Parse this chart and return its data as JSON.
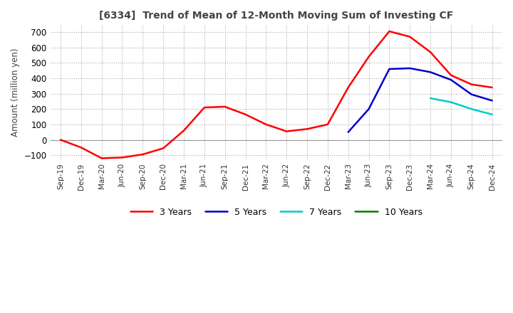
{
  "title": "[6334]  Trend of Mean of 12-Month Moving Sum of Investing CF",
  "ylabel": "Amount (million yen)",
  "ylim": [
    -130,
    750
  ],
  "yticks": [
    -100,
    0,
    100,
    200,
    300,
    400,
    500,
    600,
    700
  ],
  "x_labels": [
    "Sep-19",
    "Dec-19",
    "Mar-20",
    "Jun-20",
    "Sep-20",
    "Dec-20",
    "Mar-21",
    "Jun-21",
    "Sep-21",
    "Dec-21",
    "Mar-22",
    "Jun-22",
    "Sep-22",
    "Dec-22",
    "Mar-23",
    "Jun-23",
    "Sep-23",
    "Dec-23",
    "Mar-24",
    "Jun-24",
    "Sep-24",
    "Dec-24"
  ],
  "series": {
    "3 Years": {
      "color": "#FF0000",
      "data": [
        0,
        -50,
        -120,
        -115,
        -95,
        -55,
        60,
        210,
        215,
        165,
        100,
        55,
        70,
        100,
        340,
        540,
        705,
        670,
        570,
        420,
        360,
        340
      ]
    },
    "5 Years": {
      "color": "#0000CC",
      "data": [
        null,
        null,
        null,
        null,
        null,
        null,
        null,
        null,
        null,
        null,
        null,
        null,
        null,
        null,
        50,
        200,
        460,
        465,
        440,
        390,
        295,
        255
      ]
    },
    "7 Years": {
      "color": "#00CCCC",
      "data": [
        null,
        null,
        null,
        null,
        null,
        null,
        null,
        null,
        null,
        null,
        null,
        null,
        null,
        null,
        null,
        null,
        null,
        null,
        270,
        245,
        200,
        165
      ]
    },
    "10 Years": {
      "color": "#008000",
      "data": [
        null,
        null,
        null,
        null,
        null,
        null,
        null,
        null,
        null,
        null,
        null,
        null,
        null,
        null,
        null,
        null,
        null,
        null,
        null,
        null,
        null,
        null
      ]
    }
  },
  "background_color": "#FFFFFF",
  "grid_color": "#AAAAAA",
  "linewidth": 1.8
}
